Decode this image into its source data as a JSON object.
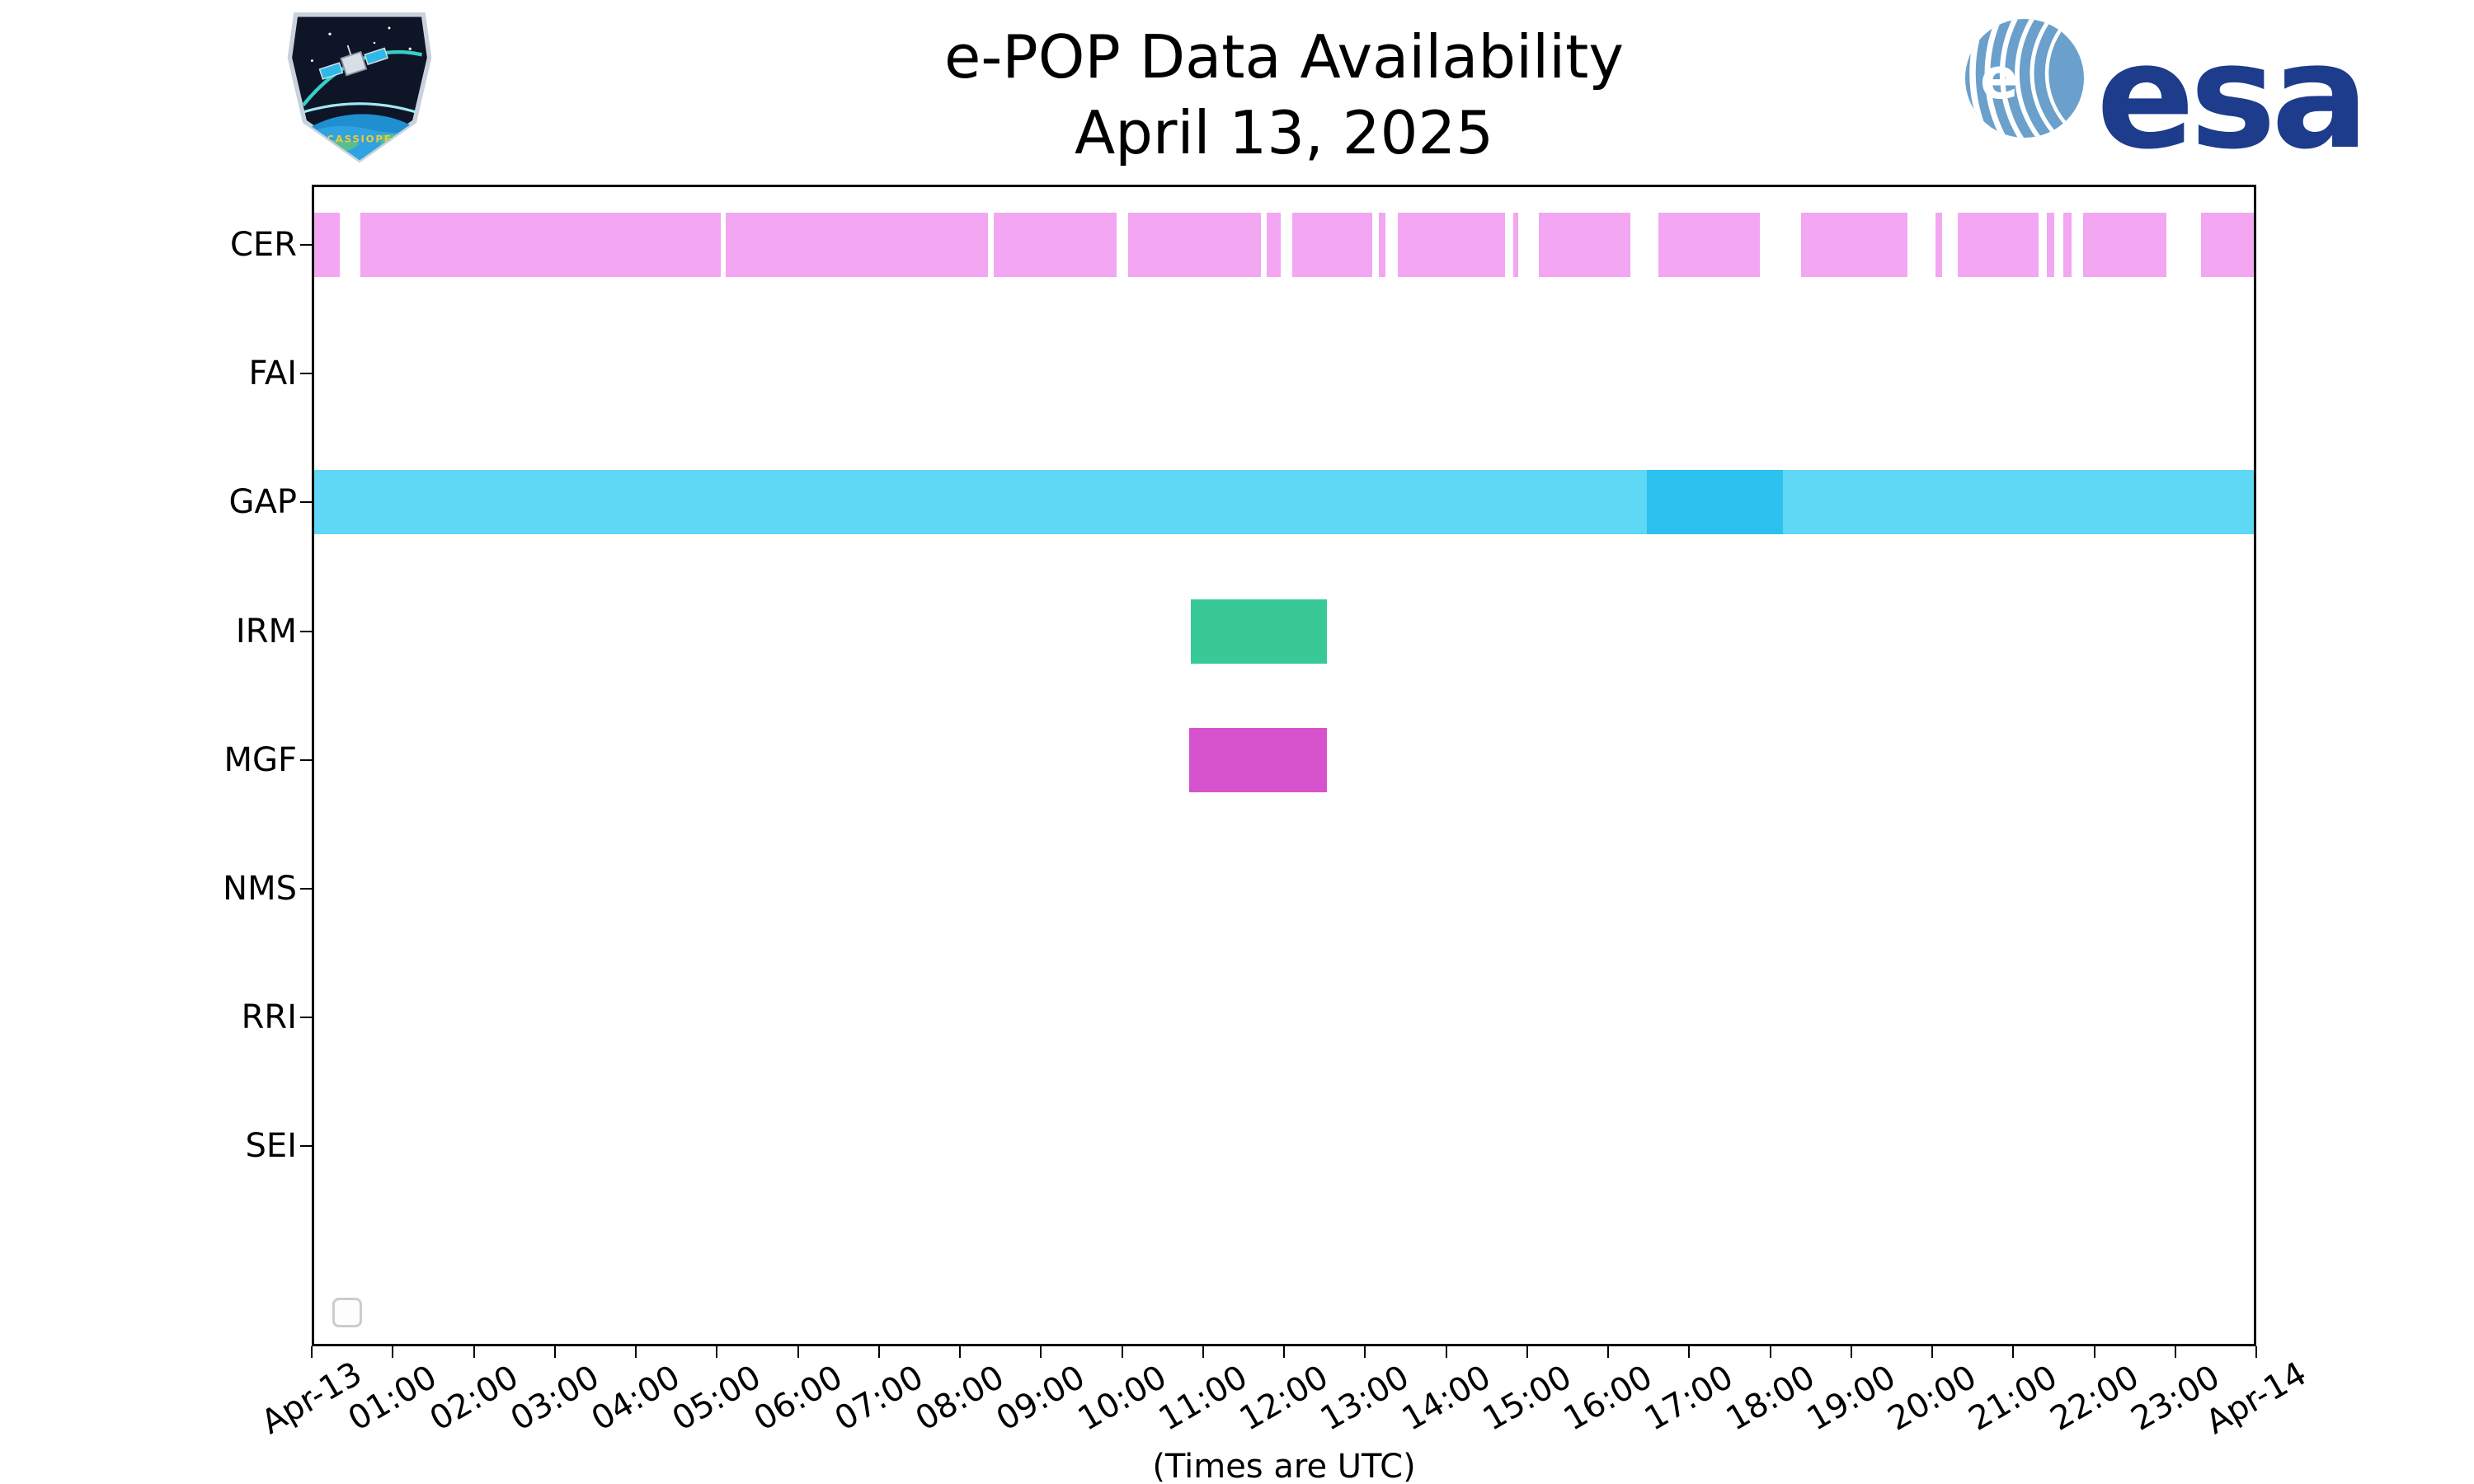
{
  "header": {
    "title": "e-POP Data Availability",
    "subtitle": "April 13, 2025"
  },
  "branding": {
    "esa_wordmark": "esa",
    "mission_patch_text": "CASSIOPE",
    "esa_blue": "#1e3c8c"
  },
  "chart_data": {
    "type": "timeline",
    "title": "e-POP Data Availability",
    "subtitle": "April 13, 2025",
    "xlabel": "(Times are UTC)",
    "x_unit": "hours UTC from 2025-04-13 00:00",
    "x_range": [
      0,
      24
    ],
    "x_tick_labels": [
      "Apr-13",
      "01:00",
      "02:00",
      "03:00",
      "04:00",
      "05:00",
      "06:00",
      "07:00",
      "08:00",
      "09:00",
      "10:00",
      "11:00",
      "12:00",
      "13:00",
      "14:00",
      "15:00",
      "16:00",
      "17:00",
      "18:00",
      "19:00",
      "20:00",
      "21:00",
      "22:00",
      "23:00",
      "Apr-14"
    ],
    "rows": [
      "CER",
      "FAI",
      "GAP",
      "IRM",
      "MGF",
      "NMS",
      "RRI",
      "SEI"
    ],
    "empty_rows": [
      "FAI",
      "NMS",
      "RRI",
      "SEI"
    ],
    "series": [
      {
        "row": "CER",
        "color": "#f3a6f1",
        "segments": [
          [
            0.0,
            0.32
          ],
          [
            0.57,
            5.02
          ],
          [
            5.08,
            8.32
          ],
          [
            8.39,
            9.9
          ],
          [
            10.05,
            11.68
          ],
          [
            11.76,
            11.93
          ],
          [
            12.07,
            13.06
          ],
          [
            13.14,
            13.22
          ],
          [
            13.37,
            14.7
          ],
          [
            14.8,
            14.86
          ],
          [
            15.11,
            16.24
          ],
          [
            16.59,
            17.84
          ],
          [
            18.35,
            19.66
          ],
          [
            20.01,
            20.09
          ],
          [
            20.29,
            21.28
          ],
          [
            21.38,
            21.48
          ],
          [
            21.59,
            21.69
          ],
          [
            21.83,
            22.86
          ],
          [
            23.29,
            24.0
          ]
        ]
      },
      {
        "row": "GAP",
        "color": "#5ed8f5",
        "segments": [
          [
            0.0,
            16.45
          ],
          [
            18.13,
            24.0
          ]
        ]
      },
      {
        "row": "GAP",
        "color": "#2cc1ef",
        "segments": [
          [
            16.45,
            18.13
          ]
        ]
      },
      {
        "row": "IRM",
        "color": "#38c997",
        "segments": [
          [
            10.82,
            12.5
          ]
        ]
      },
      {
        "row": "MGF",
        "color": "#d653cd",
        "segments": [
          [
            10.8,
            12.5
          ]
        ]
      }
    ],
    "grid": false,
    "legend_position": "lower-left-empty"
  }
}
